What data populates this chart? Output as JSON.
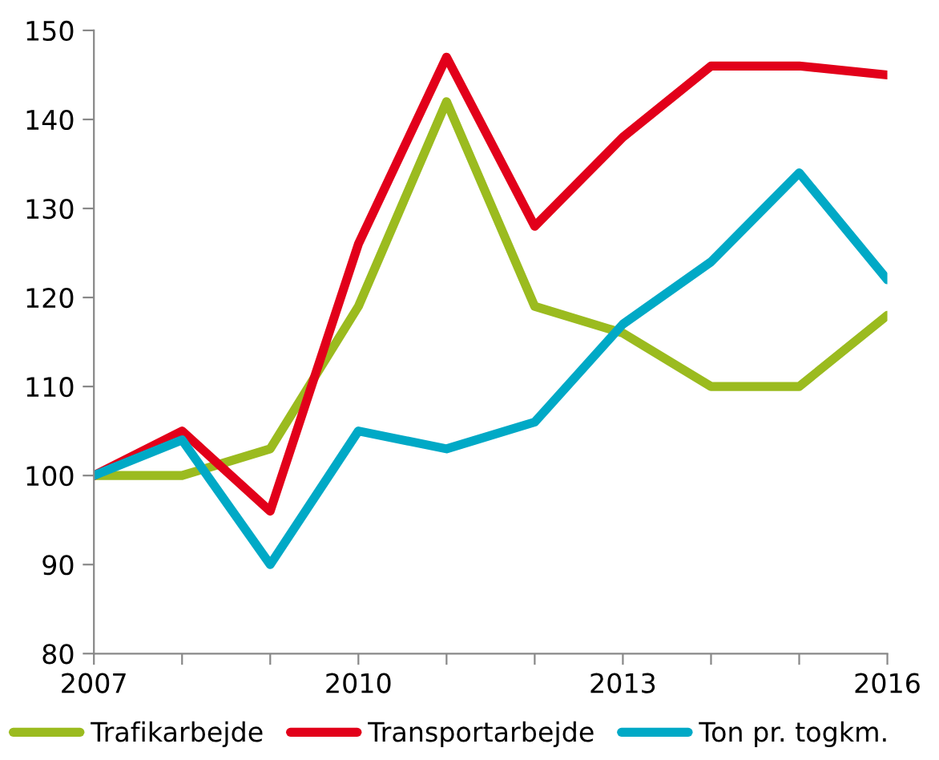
{
  "chart_data": {
    "type": "line",
    "x": [
      2007,
      2008,
      2009,
      2010,
      2011,
      2012,
      2013,
      2014,
      2015,
      2016
    ],
    "series": [
      {
        "name": "Trafikarbejde",
        "color": "#9bbb1f",
        "values": [
          100,
          100,
          103,
          119,
          142,
          119,
          116,
          110,
          110,
          118
        ]
      },
      {
        "name": "Transportarbejde",
        "color": "#e2001a",
        "values": [
          100,
          105,
          96,
          126,
          147,
          128,
          138,
          146,
          146,
          145
        ]
      },
      {
        "name": "Ton pr. togkm.",
        "color": "#00a9c6",
        "values": [
          100,
          104,
          90,
          105,
          103,
          106,
          117,
          124,
          134,
          122
        ]
      }
    ],
    "xlim": [
      2007,
      2016
    ],
    "ylim": [
      80,
      150
    ],
    "xticks": [
      2007,
      {
        "value": 2008,
        "label": null
      },
      {
        "value": 2009,
        "label": null
      },
      2010,
      {
        "value": 2011,
        "label": null
      },
      {
        "value": 2012,
        "label": null
      },
      2013,
      {
        "value": 2014,
        "label": null
      },
      {
        "value": 2015,
        "label": null
      },
      2016
    ],
    "yticks": [
      80,
      90,
      100,
      110,
      120,
      130,
      140,
      150
    ],
    "grid": false,
    "legend": "bottom",
    "marker": "none",
    "line_style": "solid"
  }
}
